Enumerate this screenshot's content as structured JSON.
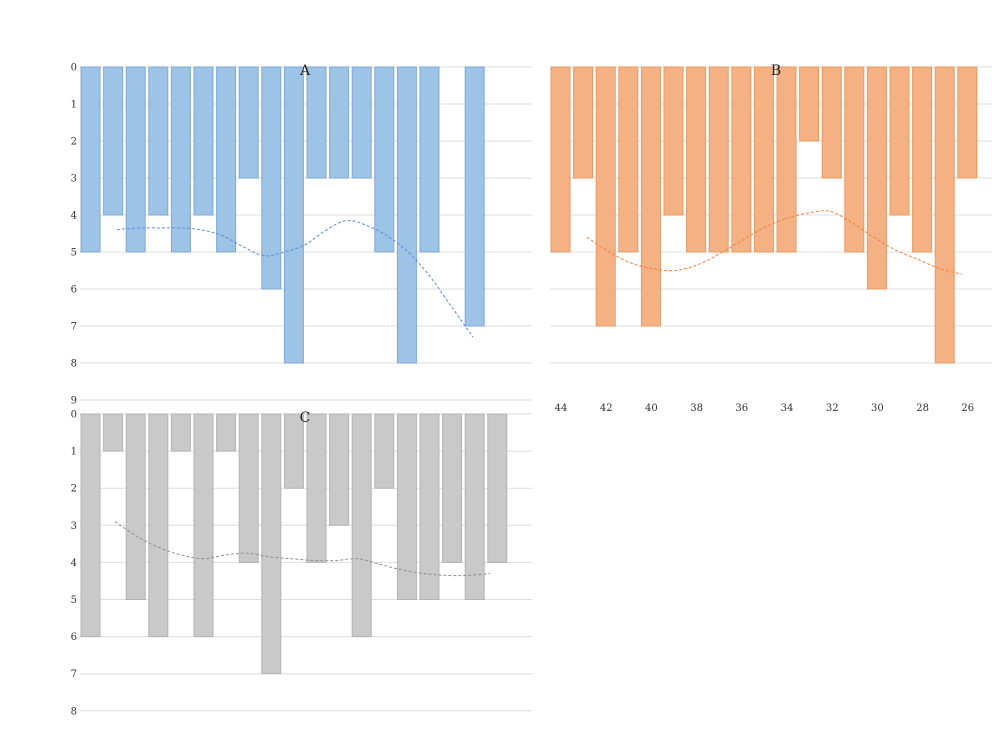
{
  "chart_data": [
    {
      "type": "bar",
      "title": "A",
      "orientation": "inverted-y",
      "ylim": [
        0,
        9
      ],
      "yticks": [
        0,
        1,
        2,
        3,
        4,
        5,
        6,
        7,
        8,
        9
      ],
      "grid": true,
      "color": "#9dc3e6",
      "stroke": "#7fa9d3",
      "trend_color": "#5b8fd0",
      "values": [
        5,
        4,
        5,
        4,
        5,
        4,
        5,
        3,
        6,
        8,
        3,
        3,
        3,
        5,
        8,
        5,
        null,
        7
      ],
      "trendline": [
        4.4,
        4.35,
        4.35,
        4.35,
        4.4,
        4.55,
        4.85,
        5.1,
        5.0,
        4.8,
        4.4,
        4.15,
        4.3,
        4.6,
        5.05,
        5.7,
        6.5,
        7.3
      ]
    },
    {
      "type": "bar",
      "title": "B",
      "orientation": "inverted-y",
      "ylim": [
        0,
        8
      ],
      "grid": true,
      "color": "#f4b183",
      "stroke": "#e89a63",
      "trend_color": "#f08040",
      "xtick_labels": [
        "44",
        "42",
        "40",
        "38",
        "36",
        "34",
        "32",
        "30",
        "28",
        "26"
      ],
      "values": [
        5,
        3,
        7,
        5,
        7,
        4,
        5,
        5,
        5,
        5,
        5,
        2,
        3,
        5,
        6,
        4,
        5,
        8,
        3
      ],
      "trendline": [
        4.6,
        5.0,
        5.3,
        5.45,
        5.5,
        5.35,
        5.05,
        4.7,
        4.35,
        4.1,
        3.95,
        3.9,
        4.2,
        4.6,
        4.95,
        5.2,
        5.45,
        5.6
      ]
    },
    {
      "type": "bar",
      "title": "C",
      "orientation": "inverted-y",
      "ylim": [
        0,
        8
      ],
      "yticks": [
        0,
        1,
        2,
        3,
        4,
        5,
        6,
        7,
        8
      ],
      "grid": true,
      "color": "#c9c9c9",
      "stroke": "#b3b3b3",
      "trend_color": "#8f8f8f",
      "values": [
        6,
        1,
        5,
        6,
        1,
        6,
        1,
        4,
        7,
        2,
        4,
        3,
        6,
        2,
        5,
        5,
        4,
        5,
        4
      ],
      "trendline": [
        2.9,
        3.3,
        3.6,
        3.8,
        3.9,
        3.8,
        3.75,
        3.85,
        3.9,
        3.95,
        3.95,
        3.9,
        4.05,
        4.2,
        4.3,
        4.35,
        4.35,
        4.3
      ]
    }
  ]
}
